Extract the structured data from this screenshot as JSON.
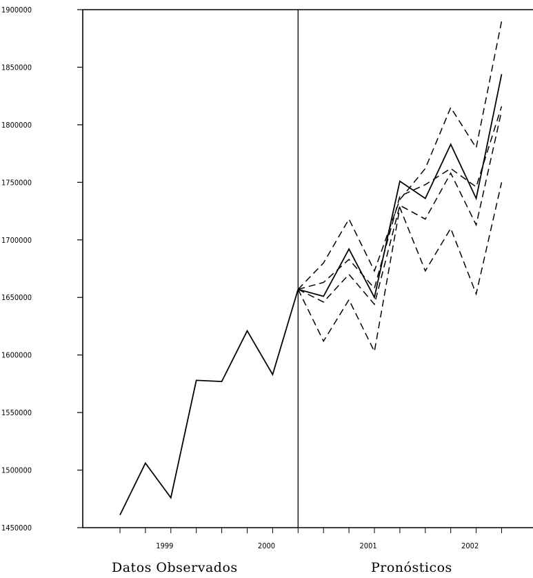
{
  "chart_data": {
    "type": "line",
    "title": "",
    "xlabel": "",
    "ylabel": "",
    "ylim": [
      1450000,
      1900000
    ],
    "y_ticks": [
      "1900000",
      "1850000",
      "1800000",
      "1750000",
      "1700000",
      "1650000",
      "1600000",
      "1550000",
      "1500000",
      "1450000"
    ],
    "x_ticks": [
      "1999",
      "2000",
      "2001",
      "2002"
    ],
    "grid": false,
    "region_labels": {
      "observed": "Datos Observados",
      "forecast": "Pronósticos"
    },
    "series": [
      {
        "role": "observed",
        "style": "solid",
        "values": [
          1461000,
          1506000,
          1476000,
          1578000,
          1577000,
          1621000,
          1583000,
          1657000
        ]
      },
      {
        "role": "forecast",
        "style": "solid",
        "values": [
          1657000,
          1651000,
          1692000,
          1650000,
          1751000,
          1736000,
          1783000,
          1736000,
          1844000
        ]
      },
      {
        "role": "inner_upper",
        "style": "dashed",
        "values": [
          1657000,
          1663000,
          1683000,
          1658000,
          1738000,
          1748000,
          1762000,
          1746000,
          1816000
        ]
      },
      {
        "role": "inner_lower",
        "style": "dashed",
        "values": [
          1657000,
          1646000,
          1670000,
          1644000,
          1730000,
          1718000,
          1758000,
          1713000,
          1812000
        ]
      },
      {
        "role": "outer_upper",
        "style": "dashed",
        "values": [
          1657000,
          1680000,
          1718000,
          1673000,
          1735000,
          1762000,
          1815000,
          1780000,
          1890000
        ]
      },
      {
        "role": "outer_lower",
        "style": "dashed",
        "values": [
          1657000,
          1612000,
          1648000,
          1603000,
          1728000,
          1673000,
          1710000,
          1653000,
          1750000
        ]
      }
    ]
  }
}
